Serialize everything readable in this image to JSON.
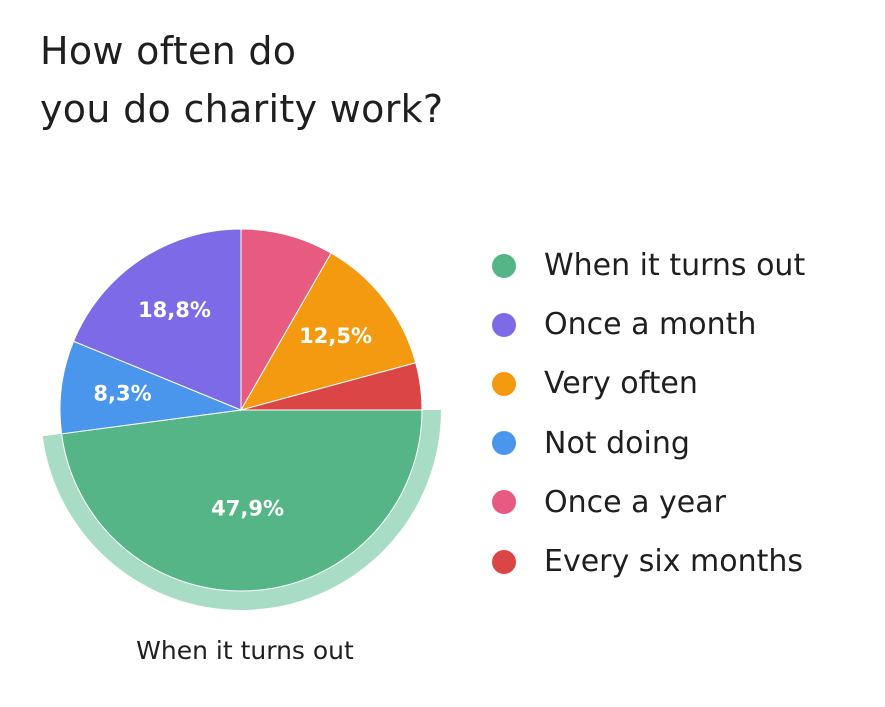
{
  "title_lines": [
    "How often do",
    "you do charity work?"
  ],
  "selected_caption": "When it turns out",
  "highlight_color": "#a8dcc4",
  "chart_data": {
    "type": "pie",
    "title": "How often do you do charity work?",
    "start": "3 o'clock, clockwise",
    "selected": "When it turns out",
    "legend_position": "right",
    "slices": [
      {
        "label": "When it turns out",
        "value": 47.9,
        "display": "47,9%",
        "color": "#56b586"
      },
      {
        "label": "Not doing",
        "value": 8.3,
        "display": "8,3%",
        "color": "#4a96ec"
      },
      {
        "label": "Once a month",
        "value": 18.8,
        "display": "18,8%",
        "color": "#7d6ae6"
      },
      {
        "label": "Once a year",
        "value": 8.3,
        "display": "",
        "color": "#e85b81"
      },
      {
        "label": "Very often",
        "value": 12.5,
        "display": "12,5%",
        "color": "#f39a11"
      },
      {
        "label": "Every six months",
        "value": 4.2,
        "display": "",
        "color": "#dc4545"
      }
    ],
    "legend": [
      {
        "label": "When it turns out",
        "color": "#56b586"
      },
      {
        "label": "Once a month",
        "color": "#7d6ae6"
      },
      {
        "label": "Very often",
        "color": "#f39a11"
      },
      {
        "label": "Not doing",
        "color": "#4a96ec"
      },
      {
        "label": "Once a year",
        "color": "#e85b81"
      },
      {
        "label": "Every six months",
        "color": "#dc4545"
      }
    ]
  }
}
